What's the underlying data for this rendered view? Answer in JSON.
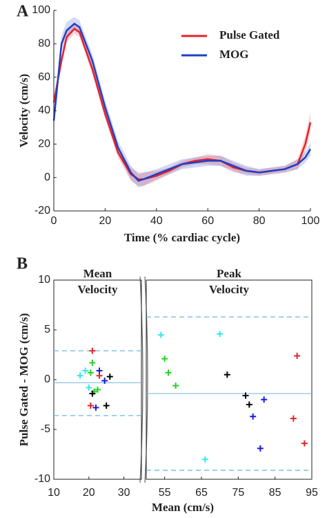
{
  "chart_data": [
    {
      "type": "line",
      "panel": "A",
      "xlabel": "Time (% cardiac cycle)",
      "ylabel": "Velocity (cm/s)",
      "xlim": [
        0,
        100
      ],
      "xticks": [
        0,
        20,
        40,
        60,
        80,
        100
      ],
      "ylim": [
        -20,
        100
      ],
      "yticks": [
        -20,
        0,
        20,
        40,
        60,
        80,
        100
      ],
      "legend": "upper right",
      "x": [
        0,
        3,
        5,
        8,
        10,
        15,
        20,
        25,
        30,
        33,
        35,
        40,
        45,
        50,
        55,
        60,
        65,
        70,
        75,
        80,
        85,
        90,
        95,
        98,
        100
      ],
      "series": [
        {
          "name": "Pulse Gated",
          "color": "#e8202a",
          "values": [
            45,
            70,
            84,
            89,
            87,
            65,
            38,
            15,
            2,
            -1,
            -1,
            1,
            4,
            8,
            10,
            11,
            10,
            6,
            4,
            3,
            4,
            5,
            8,
            20,
            33
          ],
          "error": [
            3,
            3,
            3,
            3,
            3,
            3,
            3,
            3,
            4,
            4,
            4,
            3,
            2,
            2,
            2,
            3,
            3,
            3,
            2,
            2,
            2,
            2,
            3,
            5,
            6
          ]
        },
        {
          "name": "MOG",
          "color": "#1f3fc4",
          "values": [
            34,
            80,
            88,
            92,
            90,
            70,
            42,
            18,
            3,
            -2,
            -1,
            2,
            5,
            8,
            9,
            10,
            10,
            7,
            4,
            3,
            4,
            5,
            8,
            12,
            17
          ],
          "error": [
            5,
            5,
            5,
            4,
            4,
            4,
            4,
            4,
            4,
            4,
            4,
            3,
            3,
            3,
            3,
            3,
            3,
            3,
            3,
            2,
            2,
            2,
            3,
            3,
            4
          ]
        }
      ]
    },
    {
      "type": "scatter",
      "panel": "B",
      "xlabel": "Mean (cm/s)",
      "ylabel": "Pulse Gated - MOG (cm/s)",
      "ylim": [
        -10,
        10
      ],
      "yticks": [
        -10,
        -5,
        0,
        5,
        10
      ],
      "line_color": "#6fb6e0",
      "segments": [
        {
          "label": [
            "Mean",
            "Velocity"
          ],
          "xlim": [
            10,
            35
          ],
          "xticks": [
            10,
            20,
            30
          ],
          "bias": -0.3,
          "limits": [
            2.9,
            -3.6
          ],
          "series": [
            {
              "color": "#e8202a",
              "x": [
                21,
                20.5,
                23
              ],
              "y": [
                2.9,
                -2.6,
                0.4
              ]
            },
            {
              "color": "#22d422",
              "x": [
                21,
                20.5,
                21.5,
                22.5
              ],
              "y": [
                1.7,
                0.7,
                -1.2,
                -1.0
              ]
            },
            {
              "color": "#33e6f0",
              "x": [
                17.5,
                19,
                20
              ],
              "y": [
                0.4,
                0.9,
                -0.8
              ]
            },
            {
              "color": "#1a1adc",
              "x": [
                23,
                24.5,
                22
              ],
              "y": [
                0.9,
                -0.1,
                -2.8
              ]
            },
            {
              "color": "#000000",
              "x": [
                26,
                21,
                25
              ],
              "y": [
                0.3,
                -1.4,
                -2.6
              ]
            }
          ]
        },
        {
          "label": [
            "Peak",
            "Velocity"
          ],
          "xlim": [
            50,
            95
          ],
          "xticks": [
            55,
            65,
            75,
            85,
            95
          ],
          "bias": -1.4,
          "limits": [
            6.3,
            -9.1
          ],
          "series": [
            {
              "color": "#33e6f0",
              "x": [
                54,
                70,
                66
              ],
              "y": [
                4.5,
                4.6,
                -8.0
              ]
            },
            {
              "color": "#22d422",
              "x": [
                55,
                56,
                58
              ],
              "y": [
                2.1,
                0.7,
                -0.6
              ]
            },
            {
              "color": "#000000",
              "x": [
                72,
                77,
                78
              ],
              "y": [
                0.5,
                -1.6,
                -2.5
              ]
            },
            {
              "color": "#1a1adc",
              "x": [
                82,
                79,
                81
              ],
              "y": [
                -2.0,
                -3.7,
                -6.9
              ]
            },
            {
              "color": "#e8202a",
              "x": [
                91,
                90,
                93
              ],
              "y": [
                2.4,
                -3.9,
                -6.4
              ]
            }
          ]
        }
      ]
    }
  ]
}
